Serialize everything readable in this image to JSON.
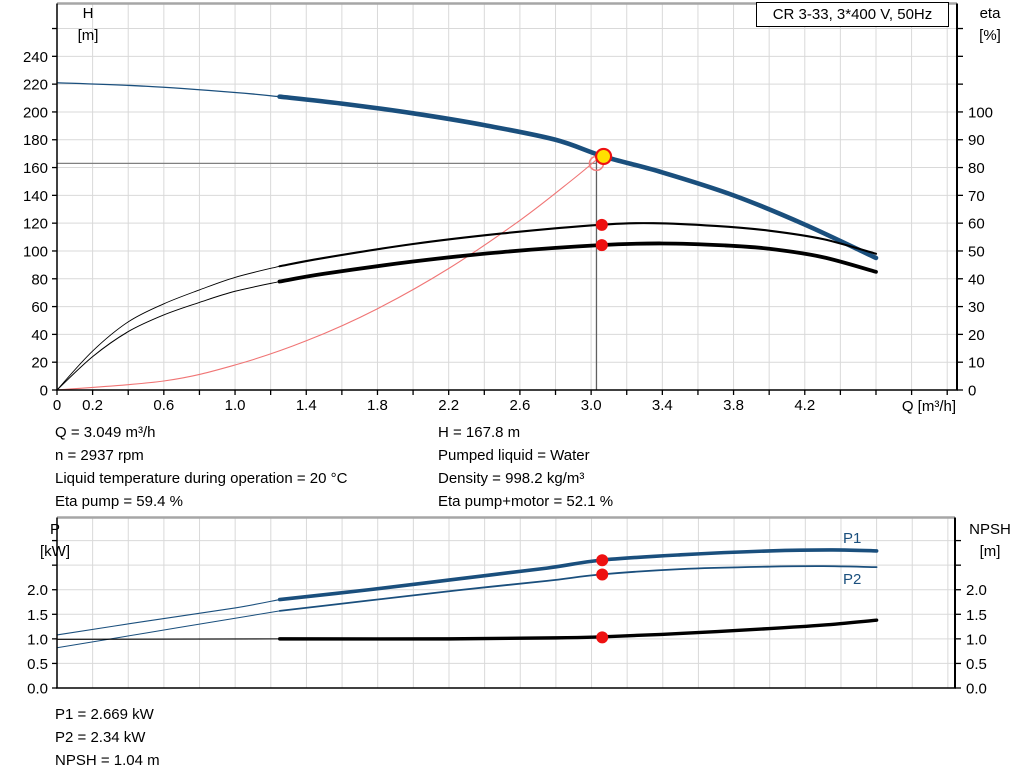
{
  "labels": {
    "title_box": "CR 3-33, 3*400 V, 50Hz",
    "h_axis": "H",
    "h_unit": "[m]",
    "eta_axis": "eta",
    "eta_unit": "[%]",
    "q_axis": "Q [m³/h]",
    "p_axis": "P",
    "p_unit": "[kW]",
    "npsh_axis": "NPSH",
    "npsh_unit": "[m]",
    "p1_curve": "P1",
    "p2_curve": "P2"
  },
  "info": {
    "top_left": [
      "Q = 3.049 m³/h",
      "n = 2937 rpm",
      "Liquid temperature during operation = 20 °C",
      "Eta pump = 59.4 %"
    ],
    "top_right": [
      "H = 167.8 m",
      "Pumped liquid = Water",
      "Density = 998.2 kg/m³",
      "Eta pump+motor = 52.1 %"
    ],
    "bottom": [
      "P1 = 2.669 kW",
      "P2 = 2.34 kW",
      "NPSH = 1.04 m"
    ]
  },
  "colors": {
    "curve_blue": "#1a4f7d",
    "black": "#000000",
    "system_red": "#f07575",
    "dot_red": "#ee1111",
    "duty_yellow": "#ffe000",
    "grid": "#d9d9d9",
    "crosshair": "#808080",
    "duty_line": "#606060",
    "top_border": "#a6a6a6"
  },
  "chart_data": [
    {
      "id": "qh-eta-chart",
      "type": "line",
      "title": "CR 3-33, 3*400 V, 50Hz",
      "xlabel": "Q [m³/h]",
      "ylabel_left": "H [m]",
      "ylabel_right": "eta [%]",
      "xlim": [
        0,
        5.055
      ],
      "ylim_left": [
        0,
        278
      ],
      "ylim_right": [
        0,
        139
      ],
      "grid": {
        "x_step": 0.2,
        "y_step": 20
      },
      "x_ticks": {
        "step": 0.2,
        "max": 5.0,
        "labeled": [
          0,
          0.2,
          0.6,
          1.0,
          1.4,
          1.8,
          2.2,
          2.6,
          3.0,
          3.4,
          3.8,
          4.2
        ],
        "fmt": "x"
      },
      "y_ticks_left": {
        "step": 20,
        "max": 260,
        "label_max": 240,
        "fmt": "int"
      },
      "y_ticks_right": {
        "step": 10,
        "max": 130,
        "label_max": 100,
        "fmt": "int"
      },
      "series": [
        {
          "name": "system-curve",
          "color": "#f07575",
          "axis": "left",
          "w_thick": 1.1,
          "points": [
            [
              0,
              0
            ],
            [
              0.6,
              6.5
            ],
            [
              1.0,
              18
            ],
            [
              1.4,
              35.4
            ],
            [
              1.8,
              58.5
            ],
            [
              2.2,
              87.4
            ],
            [
              2.6,
              122
            ],
            [
              2.9,
              151.8
            ],
            [
              3.07,
              170
            ]
          ]
        },
        {
          "name": "qh-pump-curve",
          "color": "#1a4f7d",
          "axis": "left",
          "split_q": 1.25,
          "w_thin": 1.3,
          "w_thick": 4.6,
          "points": [
            [
              0,
              221
            ],
            [
              0.5,
              218.5
            ],
            [
              1.0,
              214
            ],
            [
              1.25,
              211
            ],
            [
              1.6,
              206
            ],
            [
              2.0,
              199
            ],
            [
              2.4,
              190.5
            ],
            [
              2.8,
              180
            ],
            [
              3.07,
              168
            ],
            [
              3.4,
              156.5
            ],
            [
              3.8,
              140
            ],
            [
              4.2,
              119
            ],
            [
              4.6,
              95
            ]
          ]
        },
        {
          "name": "eta-pump-curve",
          "color": "#000000",
          "axis": "right",
          "split_q": 1.25,
          "w_thin": 0.9,
          "w_thick": 2.1,
          "points": [
            [
              0,
              0
            ],
            [
              0.2,
              14
            ],
            [
              0.4,
              24.5
            ],
            [
              0.6,
              31
            ],
            [
              0.8,
              36
            ],
            [
              1.0,
              40.5
            ],
            [
              1.25,
              44.5
            ],
            [
              1.5,
              47.5
            ],
            [
              2.0,
              52.5
            ],
            [
              2.5,
              56.3
            ],
            [
              3.05,
              59.4
            ],
            [
              3.35,
              60
            ],
            [
              3.7,
              59
            ],
            [
              4.0,
              57.3
            ],
            [
              4.3,
              54.3
            ],
            [
              4.6,
              49
            ]
          ]
        },
        {
          "name": "eta-pump-motor-curve",
          "color": "#000000",
          "axis": "right",
          "split_q": 1.25,
          "w_thin": 1.0,
          "w_thick": 3.8,
          "points": [
            [
              0,
              0
            ],
            [
              0.2,
              12
            ],
            [
              0.4,
              21
            ],
            [
              0.6,
              27
            ],
            [
              0.8,
              31.5
            ],
            [
              1.0,
              35.5
            ],
            [
              1.25,
              39
            ],
            [
              1.5,
              41.8
            ],
            [
              2.0,
              46.2
            ],
            [
              2.5,
              49.6
            ],
            [
              3.05,
              52.1
            ],
            [
              3.4,
              52.7
            ],
            [
              3.75,
              52
            ],
            [
              4.0,
              50.8
            ],
            [
              4.3,
              47.8
            ],
            [
              4.6,
              42.5
            ]
          ]
        }
      ],
      "markers": {
        "crosshair_point": {
          "q": 3.03,
          "h": 163
        },
        "duty_point": {
          "q": 3.07,
          "h": 168
        },
        "dots": [
          {
            "q": 3.06,
            "axis": "right",
            "v": 59.4
          },
          {
            "q": 3.06,
            "axis": "right",
            "v": 52.1
          }
        ]
      },
      "duty_values": {
        "Q": "3.049 m³/h",
        "H": "167.8 m",
        "eta_pump": "59.4 %",
        "eta_pump_motor": "52.1 %"
      }
    },
    {
      "id": "power-npsh-chart",
      "type": "line",
      "xlabel": "",
      "ylabel_left": "P [kW]",
      "ylabel_right": "NPSH [m]",
      "xlim": [
        0,
        5.04
      ],
      "ylim_left": [
        0,
        3.47
      ],
      "ylim_right": [
        0,
        3.47
      ],
      "grid": {
        "x_step": 0.2,
        "y_step": 0.5
      },
      "x_ticks": {
        "step": 0,
        "max": 0,
        "labeled": [],
        "fmt": "x"
      },
      "y_ticks_left": {
        "step": 0.5,
        "max": 3.0,
        "label_max": 2.0,
        "fmt": "1dp"
      },
      "y_ticks_right": {
        "step": 0.5,
        "max": 3.0,
        "label_max": 2.0,
        "fmt": "1dp"
      },
      "series": [
        {
          "name": "p1-curve",
          "color": "#1a4f7d",
          "axis": "left",
          "split_q": 1.25,
          "w_thin": 1.1,
          "w_thick": 3.6,
          "points": [
            [
              0,
              1.08
            ],
            [
              0.5,
              1.36
            ],
            [
              1.0,
              1.63
            ],
            [
              1.25,
              1.8
            ],
            [
              1.75,
              2.0
            ],
            [
              2.25,
              2.22
            ],
            [
              2.75,
              2.44
            ],
            [
              3.05,
              2.6
            ],
            [
              3.5,
              2.71
            ],
            [
              4.0,
              2.79
            ],
            [
              4.35,
              2.81
            ],
            [
              4.6,
              2.79
            ]
          ]
        },
        {
          "name": "p2-curve",
          "color": "#1a4f7d",
          "axis": "left",
          "split_q": 1.25,
          "w_thin": 1.0,
          "w_thick": 1.8,
          "points": [
            [
              0,
              0.82
            ],
            [
              0.5,
              1.12
            ],
            [
              1.0,
              1.42
            ],
            [
              1.25,
              1.57
            ],
            [
              1.75,
              1.78
            ],
            [
              2.25,
              1.99
            ],
            [
              2.75,
              2.18
            ],
            [
              3.05,
              2.31
            ],
            [
              3.5,
              2.42
            ],
            [
              4.0,
              2.47
            ],
            [
              4.3,
              2.48
            ],
            [
              4.6,
              2.46
            ]
          ]
        },
        {
          "name": "npsh-curve",
          "color": "#000000",
          "axis": "left",
          "split_q": 1.25,
          "w_thin": 1.1,
          "w_thick": 3.4,
          "points": [
            [
              0,
              0.99
            ],
            [
              1.25,
              1.0
            ],
            [
              2.2,
              1.0
            ],
            [
              2.8,
              1.02
            ],
            [
              3.05,
              1.04
            ],
            [
              3.5,
              1.11
            ],
            [
              4.0,
              1.21
            ],
            [
              4.3,
              1.28
            ],
            [
              4.6,
              1.38
            ]
          ]
        }
      ],
      "markers": {
        "dots": [
          {
            "q": 3.06,
            "axis": "left",
            "v": 2.6
          },
          {
            "q": 3.06,
            "axis": "left",
            "v": 2.31
          },
          {
            "q": 3.06,
            "axis": "left",
            "v": 1.03
          }
        ]
      },
      "duty_values": {
        "P1": "2.669 kW",
        "P2": "2.34 kW",
        "NPSH": "1.04 m"
      }
    }
  ]
}
